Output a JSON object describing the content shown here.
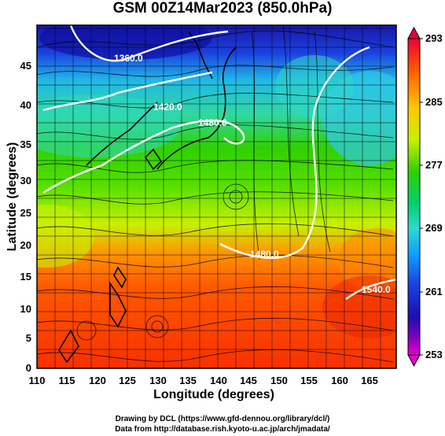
{
  "title": "GSM 00Z14Mar2023 (850.0hPa)",
  "x_axis": {
    "label": "Longitude (degrees)",
    "ticks": [
      "110",
      "115",
      "120",
      "125",
      "130",
      "135",
      "140",
      "145",
      "150",
      "155",
      "160",
      "165"
    ]
  },
  "y_axis": {
    "label": "Latitude  (degrees)",
    "ticks": [
      "0",
      "5",
      "10",
      "15",
      "20",
      "25",
      "30",
      "35",
      "40",
      "45"
    ]
  },
  "colorbar": {
    "ticks": [
      "293",
      "285",
      "277",
      "269",
      "261",
      "253"
    ],
    "colors": [
      "#e8003a",
      "#ff5a00",
      "#ffc800",
      "#c8f000",
      "#30d000",
      "#00d070",
      "#30d8d0",
      "#10a0ff",
      "#1a40e0",
      "#1a10b0",
      "#8a00c0",
      "#e800d0"
    ]
  },
  "contours": [
    {
      "label": "1360.0"
    },
    {
      "label": "1420.0"
    },
    {
      "label": "1480.0"
    },
    {
      "label": "1480.0"
    },
    {
      "label": "1540.0"
    }
  ],
  "credits": {
    "line1": "Drawing by DCL (https://www.gfd-dennou.org/library/dcl/)",
    "line2": "Data from http://database.rish.kyoto-u.ac.jp/arch/jmadata/"
  }
}
